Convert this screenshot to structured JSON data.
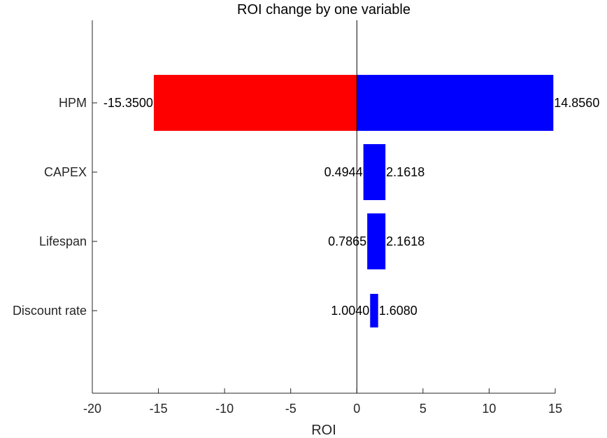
{
  "chart_data": {
    "type": "bar",
    "orientation": "horizontal",
    "title": "ROI change by one variable",
    "xlabel": "ROI",
    "ylabel": "",
    "xlim": [
      -20,
      15
    ],
    "xticks": [
      "-20",
      "-15",
      "-10",
      "-5",
      "0",
      "5",
      "10",
      "15"
    ],
    "categories": [
      "HPM",
      "CAPEX",
      "Lifespan",
      "Discount rate"
    ],
    "bars": [
      {
        "category": "HPM",
        "low": -15.35,
        "high": 14.856,
        "low_label": "-15.3500",
        "high_label": "14.8560"
      },
      {
        "category": "CAPEX",
        "low": 0.4944,
        "high": 2.1618,
        "low_label": "0.4944",
        "high_label": "2.1618"
      },
      {
        "category": "Lifespan",
        "low": 0.7865,
        "high": 2.1618,
        "low_label": "0.7865",
        "high_label": "2.1618"
      },
      {
        "category": "Discount rate",
        "low": 1.004,
        "high": 1.608,
        "low_label": "1.0040",
        "high_label": "1.6080"
      }
    ],
    "bar_heights": [
      1.0,
      1.0,
      1.0,
      0.6
    ],
    "colors": {
      "negative": "#ff0000",
      "positive": "#0000ff"
    },
    "grid": false,
    "legend": "none"
  }
}
